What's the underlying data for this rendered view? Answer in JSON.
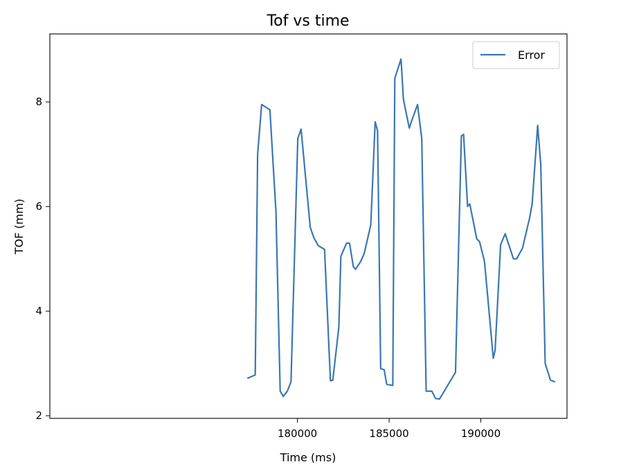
{
  "chart_data": {
    "type": "line",
    "title": "Tof vs time",
    "xlabel": "Time (ms)",
    "ylabel": "TOF (mm)",
    "xlim": [
      166500,
      194700
    ],
    "ylim": [
      1.95,
      9.3
    ],
    "xticks": [
      180000,
      185000,
      190000
    ],
    "yticks": [
      2,
      4,
      6,
      8
    ],
    "grid": false,
    "legend": {
      "placement": "top-right"
    },
    "series": [
      {
        "name": "Error",
        "color": "#3a77b2",
        "x": [
          177300,
          177700,
          177830,
          178050,
          178500,
          178830,
          179060,
          179230,
          179450,
          179650,
          180020,
          180200,
          180700,
          180900,
          181140,
          181480,
          181800,
          181930,
          182260,
          182370,
          182680,
          182840,
          183050,
          183170,
          183450,
          183640,
          184000,
          184240,
          184370,
          184540,
          184730,
          184870,
          185200,
          185310,
          185650,
          185780,
          186100,
          186210,
          186550,
          186780,
          187020,
          187330,
          187530,
          187750,
          188620,
          188940,
          189060,
          189280,
          189400,
          189780,
          189930,
          190200,
          190370,
          190680,
          190780,
          191080,
          191330,
          191780,
          191950,
          192270,
          192660,
          192800,
          193100,
          193270,
          193510,
          193800,
          194020
        ],
        "y": [
          2.72,
          2.78,
          7.0,
          7.95,
          7.85,
          5.9,
          2.47,
          2.37,
          2.47,
          2.65,
          7.3,
          7.48,
          5.6,
          5.4,
          5.25,
          5.18,
          2.67,
          2.68,
          3.7,
          5.05,
          5.3,
          5.3,
          4.85,
          4.8,
          4.95,
          5.1,
          5.65,
          7.62,
          7.45,
          2.9,
          2.88,
          2.6,
          2.58,
          8.45,
          8.82,
          8.05,
          7.5,
          7.62,
          7.95,
          7.3,
          2.47,
          2.47,
          2.33,
          2.32,
          2.83,
          7.35,
          7.38,
          6.0,
          6.05,
          5.38,
          5.33,
          4.95,
          4.3,
          3.1,
          3.25,
          5.27,
          5.48,
          5.0,
          5.0,
          5.2,
          5.78,
          6.05,
          7.55,
          6.8,
          3.0,
          2.68,
          2.65
        ]
      }
    ]
  }
}
